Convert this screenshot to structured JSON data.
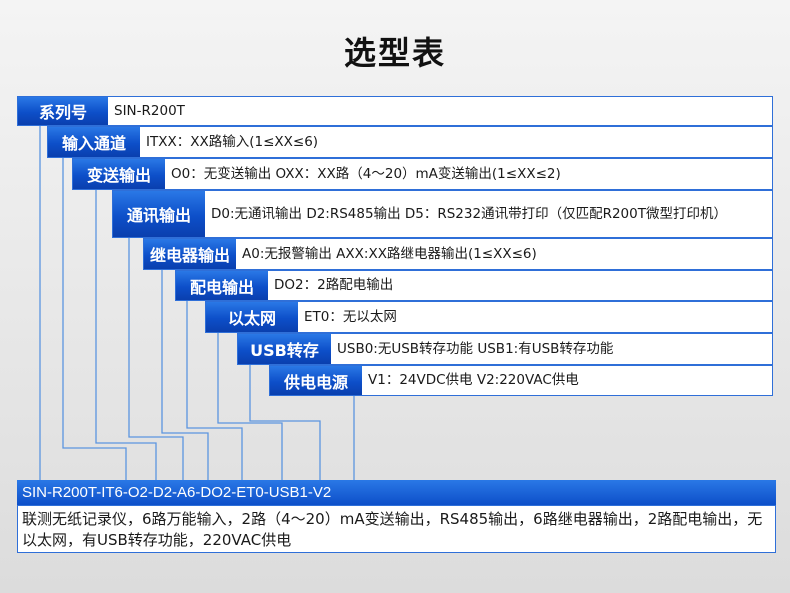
{
  "title": "选型表",
  "rows": [
    {
      "label": "系列号",
      "value": "SIN-R200T"
    },
    {
      "label": "输入通道",
      "value": "ITXX：XX路输入(1≤XX≤6)"
    },
    {
      "label": "变送输出",
      "value": "O0：无变送输出 OXX：XX路（4～20）mA变送输出(1≤XX≤2)"
    },
    {
      "label": "通讯输出",
      "value": "D0:无通讯输出  D2:RS485输出 D5：RS232通讯带打印（仅匹配R200T微型打印机）"
    },
    {
      "label": "继电器输出",
      "value": "A0:无报警输出 AXX:XX路继电器输出(1≤XX≤6)"
    },
    {
      "label": "配电输出",
      "value": "DO2：2路配电输出"
    },
    {
      "label": "以太网",
      "value": "ET0：无以太网"
    },
    {
      "label": "USB转存",
      "value": "USB0:无USB转存功能 USB1:有USB转存功能"
    },
    {
      "label": "供电电源",
      "value": "V1：24VDC供电 V2:220VAC供电"
    }
  ],
  "example": {
    "code": "SIN-R200T-IT6-O2-D2-A6-DO2-ET0-USB1-V2",
    "description": "联测无纸记录仪，6路万能输入，2路（4～20）mA变送输出，RS485输出，6路继电器输出，2路配电输出，无以太网，有USB转存功能，220VAC供电"
  },
  "colors": {
    "accent": "#0d4fc9",
    "line": "#5b95e0"
  }
}
